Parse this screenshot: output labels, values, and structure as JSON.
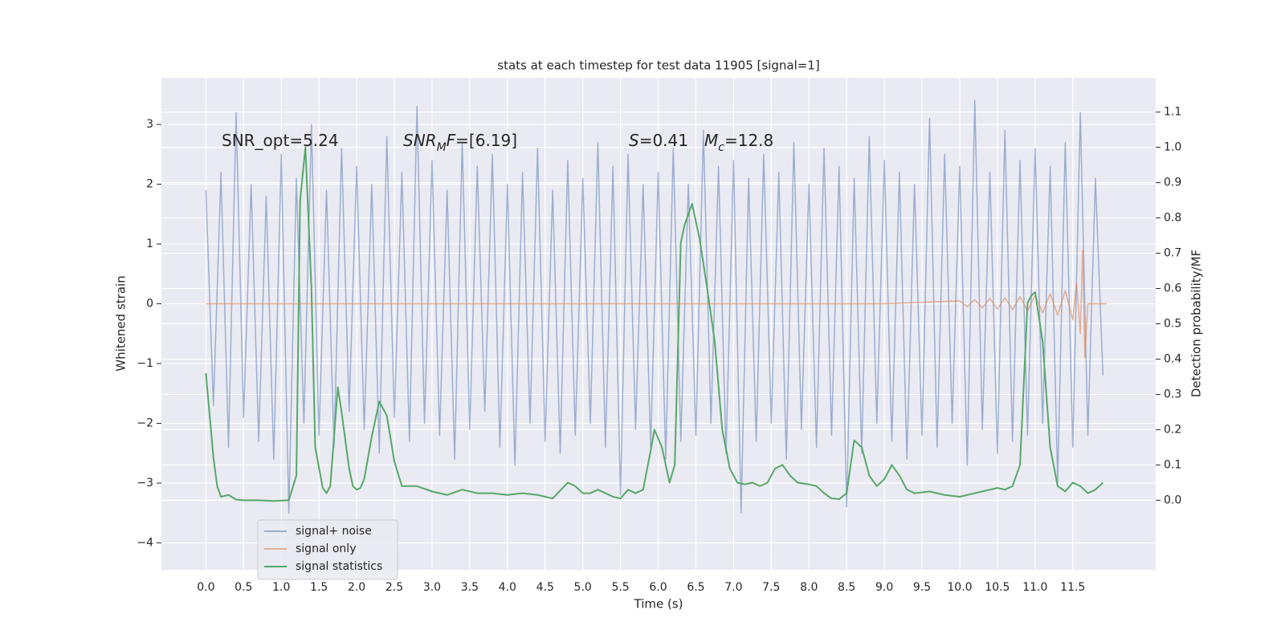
{
  "chart_data": {
    "type": "line",
    "title": "stats at each timestep for test data 11905 [signal=1]",
    "x_label": "Time (s)",
    "y_label": "Whitened strain",
    "y2_label": "Detection probability/MF",
    "annotations": [
      [
        {
          "text": "SNR_opt=5.24",
          "style": "normal"
        }
      ],
      [
        {
          "text": "SNR",
          "style": "italic"
        },
        {
          "text": "M",
          "style": "sub"
        },
        {
          "text": "F",
          "style": "italic"
        },
        {
          "text": "=[6.19]",
          "style": "normal"
        }
      ],
      [
        {
          "text": "S",
          "style": "italic"
        },
        {
          "text": "=0.41",
          "style": "normal"
        }
      ],
      [
        {
          "text": "M",
          "style": "italic"
        },
        {
          "text": "c",
          "style": "sub"
        },
        {
          "text": "=12.8",
          "style": "normal"
        }
      ]
    ],
    "xlim": [
      -0.59,
      12.6
    ],
    "ylim": [
      -4.45,
      3.78
    ],
    "y2lim": [
      -0.197,
      1.197
    ],
    "xticks": [
      {
        "value": 0,
        "label": "0.0"
      },
      0.5,
      {
        "value": 1,
        "label": "1.0"
      },
      1.5,
      {
        "value": 2,
        "label": "2.0"
      },
      2.5,
      {
        "value": 3,
        "label": "3.0"
      },
      3.5,
      {
        "value": 4,
        "label": "4.0"
      },
      4.5,
      {
        "value": 5,
        "label": "5.0"
      },
      5.5,
      {
        "value": 6,
        "label": "6.0"
      },
      6.5,
      {
        "value": 7,
        "label": "7.0"
      },
      7.5,
      {
        "value": 8,
        "label": "8.0"
      },
      8.5,
      {
        "value": 9,
        "label": "9.0"
      },
      9.5,
      {
        "value": 10,
        "label": "10.0"
      },
      10.5,
      {
        "value": 11,
        "label": "11.0"
      },
      11.5
    ],
    "yticks": [
      {
        "value": -4,
        "label": "−4"
      },
      {
        "value": -3,
        "label": "−3"
      },
      {
        "value": -2,
        "label": "−2"
      },
      {
        "value": -1,
        "label": "−1"
      },
      0,
      1,
      2,
      3
    ],
    "y2ticks": [
      {
        "value": 0,
        "label": "0.0"
      },
      0.1,
      0.2,
      0.3,
      0.4,
      0.5,
      0.6,
      0.7,
      0.8,
      0.9,
      {
        "value": 1,
        "label": "1.0"
      },
      1.1
    ],
    "grid": true,
    "legend": "lower left",
    "background": "#eaeaf2",
    "series": [
      {
        "name": "signal+ noise",
        "color": "#4c72b0",
        "alpha": 0.5,
        "axis": "y",
        "x": [
          0,
          0.1,
          0.2,
          0.3,
          0.4,
          0.5,
          0.6,
          0.7,
          0.8,
          0.9,
          1,
          1.1,
          1.2,
          1.3,
          1.4,
          1.5,
          1.6,
          1.7,
          1.8,
          1.9,
          2,
          2.1,
          2.2,
          2.3,
          2.4,
          2.5,
          2.6,
          2.7,
          2.8,
          2.9,
          3,
          3.1,
          3.2,
          3.3,
          3.4,
          3.5,
          3.6,
          3.7,
          3.8,
          3.9,
          4,
          4.1,
          4.2,
          4.3,
          4.4,
          4.5,
          4.6,
          4.7,
          4.8,
          4.9,
          5,
          5.1,
          5.2,
          5.3,
          5.4,
          5.5,
          5.6,
          5.7,
          5.8,
          5.9,
          6,
          6.1,
          6.2,
          6.3,
          6.4,
          6.5,
          6.6,
          6.7,
          6.8,
          6.9,
          7,
          7.1,
          7.2,
          7.3,
          7.4,
          7.5,
          7.6,
          7.7,
          7.8,
          7.9,
          8,
          8.1,
          8.2,
          8.3,
          8.4,
          8.5,
          8.6,
          8.7,
          8.8,
          8.9,
          9,
          9.1,
          9.2,
          9.3,
          9.4,
          9.5,
          9.6,
          9.7,
          9.8,
          9.9,
          10,
          10.1,
          10.2,
          10.3,
          10.4,
          10.5,
          10.6,
          10.7,
          10.8,
          10.9,
          11,
          11.1,
          11.2,
          11.3,
          11.4,
          11.5,
          11.6,
          11.7,
          11.8,
          11.9
        ],
        "values": [
          1.9,
          -1.7,
          2.2,
          -2.4,
          3.2,
          -1.9,
          2.0,
          -2.3,
          1.8,
          -2.6,
          2.5,
          -3.5,
          2.1,
          -2.0,
          3.0,
          -2.2,
          1.9,
          -2.4,
          2.6,
          -1.8,
          2.3,
          -2.1,
          2.0,
          -2.5,
          2.8,
          -1.9,
          2.2,
          -2.3,
          3.3,
          -2.0,
          2.4,
          -2.2,
          1.9,
          -2.6,
          2.7,
          -2.1,
          2.3,
          -1.8,
          2.5,
          -2.4,
          2.0,
          -2.7,
          2.2,
          -2.0,
          2.6,
          -2.3,
          1.9,
          -2.5,
          2.4,
          -2.2,
          2.1,
          -2.0,
          2.7,
          -2.4,
          2.3,
          -3.2,
          2.5,
          -2.1,
          2.0,
          -2.4,
          2.2,
          -2.6,
          2.6,
          -2.3,
          2.0,
          -2.2,
          2.9,
          -2.0,
          2.3,
          -2.5,
          2.4,
          -3.5,
          2.1,
          -2.3,
          2.5,
          -2.0,
          2.2,
          -2.6,
          2.7,
          -2.1,
          2.0,
          -2.4,
          2.6,
          -2.2,
          2.3,
          -3.4,
          2.1,
          -2.5,
          2.8,
          -2.0,
          2.4,
          -2.3,
          2.2,
          -2.6,
          2.0,
          -2.2,
          3.1,
          -2.4,
          2.5,
          -2.0,
          2.3,
          -2.7,
          3.4,
          -2.1,
          2.2,
          -2.5,
          2.9,
          -2.3,
          2.4,
          -2.2,
          2.6,
          -2.0,
          2.3,
          -3.0,
          2.7,
          -2.4,
          3.2,
          -2.2,
          2.1,
          -1.2
        ]
      },
      {
        "name": "signal only",
        "color": "#dd8452",
        "alpha": 0.6,
        "axis": "y",
        "x": [
          0,
          9.0,
          10.0,
          10.1,
          10.2,
          10.3,
          10.4,
          10.5,
          10.6,
          10.7,
          10.8,
          10.9,
          11.0,
          11.1,
          11.2,
          11.3,
          11.4,
          11.5,
          11.55,
          11.6,
          11.63,
          11.66,
          11.7,
          11.95
        ],
        "values": [
          0,
          0,
          0.05,
          -0.05,
          0.07,
          -0.07,
          0.09,
          -0.09,
          0.1,
          -0.1,
          0.12,
          -0.12,
          0.14,
          -0.15,
          0.17,
          -0.19,
          0.22,
          -0.27,
          0.35,
          -0.5,
          0.9,
          -0.9,
          0,
          0
        ]
      },
      {
        "name": "signal statistics",
        "color": "#55a868",
        "alpha": 1,
        "axis": "y2",
        "x": [
          0,
          0.1,
          0.15,
          0.2,
          0.3,
          0.4,
          0.5,
          0.7,
          0.9,
          1.1,
          1.2,
          1.25,
          1.32,
          1.4,
          1.45,
          1.55,
          1.6,
          1.65,
          1.7,
          1.75,
          1.8,
          1.9,
          1.95,
          2.0,
          2.05,
          2.1,
          2.2,
          2.3,
          2.4,
          2.5,
          2.6,
          2.7,
          2.8,
          3.0,
          3.2,
          3.4,
          3.6,
          3.8,
          4.0,
          4.2,
          4.4,
          4.6,
          4.8,
          4.9,
          5.0,
          5.1,
          5.2,
          5.3,
          5.4,
          5.5,
          5.6,
          5.7,
          5.8,
          5.9,
          5.95,
          6.05,
          6.15,
          6.22,
          6.3,
          6.35,
          6.45,
          6.55,
          6.65,
          6.75,
          6.85,
          6.95,
          7.05,
          7.15,
          7.25,
          7.35,
          7.45,
          7.55,
          7.65,
          7.75,
          7.85,
          8.0,
          8.1,
          8.2,
          8.3,
          8.4,
          8.5,
          8.6,
          8.7,
          8.8,
          8.9,
          9.0,
          9.1,
          9.2,
          9.3,
          9.4,
          9.6,
          9.8,
          10.0,
          10.2,
          10.4,
          10.5,
          10.6,
          10.7,
          10.8,
          10.9,
          10.95,
          11.0,
          11.1,
          11.2,
          11.3,
          11.4,
          11.5,
          11.6,
          11.7,
          11.8,
          11.9
        ],
        "values": [
          0.36,
          0.12,
          0.04,
          0.01,
          0.015,
          0.002,
          0.0,
          0.0,
          -0.002,
          0.0,
          0.07,
          0.85,
          1.0,
          0.6,
          0.15,
          0.035,
          0.02,
          0.04,
          0.18,
          0.32,
          0.25,
          0.09,
          0.04,
          0.03,
          0.035,
          0.06,
          0.18,
          0.28,
          0.24,
          0.11,
          0.04,
          0.04,
          0.04,
          0.025,
          0.015,
          0.03,
          0.02,
          0.02,
          0.015,
          0.02,
          0.015,
          0.005,
          0.05,
          0.04,
          0.02,
          0.02,
          0.03,
          0.02,
          0.01,
          0.005,
          0.03,
          0.02,
          0.03,
          0.14,
          0.2,
          0.15,
          0.05,
          0.1,
          0.73,
          0.78,
          0.84,
          0.74,
          0.6,
          0.45,
          0.2,
          0.09,
          0.05,
          0.045,
          0.05,
          0.04,
          0.05,
          0.09,
          0.1,
          0.07,
          0.05,
          0.045,
          0.04,
          0.02,
          0.005,
          0.003,
          0.02,
          0.17,
          0.15,
          0.07,
          0.04,
          0.06,
          0.1,
          0.07,
          0.03,
          0.02,
          0.025,
          0.015,
          0.01,
          0.02,
          0.03,
          0.035,
          0.03,
          0.04,
          0.1,
          0.56,
          0.58,
          0.59,
          0.45,
          0.15,
          0.04,
          0.025,
          0.05,
          0.04,
          0.02,
          0.03,
          0.05
        ]
      }
    ]
  }
}
